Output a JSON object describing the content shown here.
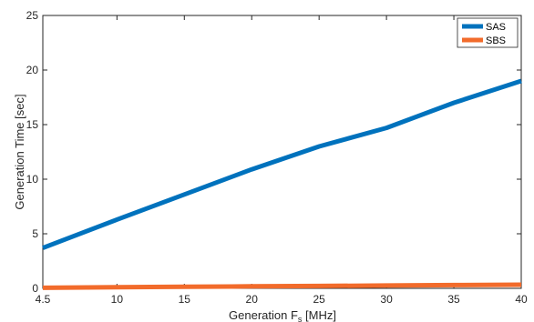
{
  "chart_data": {
    "type": "line",
    "title": "",
    "xlabel": "Generation F",
    "xlabel_sub": "s",
    "xlabel_unit": " [MHz]",
    "ylabel": "Generation Time [sec]",
    "xlim": [
      4.5,
      40
    ],
    "ylim": [
      0,
      25
    ],
    "x_ticks": [
      4.5,
      10,
      15,
      20,
      25,
      30,
      35,
      40
    ],
    "y_ticks": [
      0,
      5,
      10,
      15,
      20,
      25
    ],
    "grid": false,
    "legend_position": "top-right",
    "x": [
      4.5,
      10,
      15,
      20,
      25,
      30,
      35,
      40
    ],
    "series": [
      {
        "name": "SAS",
        "color": "#0072BD",
        "values": [
          3.7,
          6.3,
          8.6,
          10.9,
          13.0,
          14.7,
          17.0,
          19.0
        ]
      },
      {
        "name": "SBS",
        "color": "#F26B2B",
        "values": [
          0.05,
          0.1,
          0.14,
          0.18,
          0.22,
          0.26,
          0.3,
          0.33
        ]
      }
    ]
  }
}
